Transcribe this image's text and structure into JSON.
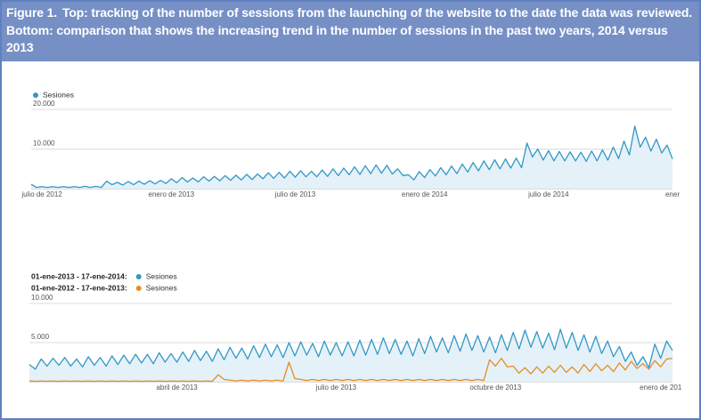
{
  "caption": {
    "label": "Figure 1.",
    "text": "Top: tracking of the number of sessions from the launching of the website to the date the data was reviewed. Bottom: comparison that shows the increasing trend in the number of sessions in the past two years, 2014 versus 2013"
  },
  "chart_data": [
    {
      "type": "line",
      "categories": [
        null,
        null,
        "julio de 2012",
        null,
        null,
        null,
        null,
        null,
        null,
        null,
        null,
        null,
        null,
        null,
        null,
        null,
        null,
        null,
        null,
        null,
        null,
        null,
        null,
        null,
        null,
        null,
        "enero de 2013",
        null,
        null,
        null,
        null,
        null,
        null,
        null,
        null,
        null,
        null,
        null,
        null,
        null,
        null,
        null,
        null,
        null,
        null,
        null,
        null,
        null,
        null,
        "julio de 2013",
        null,
        null,
        null,
        null,
        null,
        null,
        null,
        null,
        null,
        null,
        null,
        null,
        null,
        null,
        null,
        null,
        null,
        null,
        null,
        null,
        null,
        null,
        null,
        "enero de 2014",
        null,
        null,
        null,
        null,
        null,
        null,
        null,
        null,
        null,
        null,
        null,
        null,
        null,
        null,
        null,
        null,
        null,
        null,
        null,
        null,
        null,
        null,
        "julio de 2014",
        null,
        null,
        null,
        null,
        null,
        null,
        null,
        null,
        null,
        null,
        null,
        null,
        null,
        null,
        null,
        null,
        null,
        null,
        null,
        null,
        null,
        null,
        "ener"
      ],
      "series": [
        {
          "name": "Sesiones",
          "color": "#3497c6",
          "fill": "#e4f1f8",
          "values": [
            1100,
            300,
            500,
            300,
            500,
            300,
            500,
            300,
            500,
            300,
            600,
            300,
            600,
            300,
            1900,
            1000,
            1600,
            900,
            1800,
            1000,
            1900,
            1100,
            2000,
            1200,
            2100,
            1300,
            2500,
            1500,
            2800,
            1700,
            2700,
            1700,
            3000,
            1900,
            3100,
            2000,
            3300,
            2100,
            3400,
            2200,
            3600,
            2300,
            3700,
            2500,
            4000,
            2600,
            4100,
            2700,
            4400,
            2900,
            4500,
            3000,
            4400,
            3000,
            4700,
            3100,
            5000,
            3300,
            5200,
            3500,
            5500,
            3600,
            5800,
            3800,
            6000,
            3900,
            5900,
            3700,
            5000,
            3300,
            3500,
            2200,
            4300,
            2800,
            4800,
            3200,
            5300,
            3500,
            5700,
            3800,
            6200,
            4200,
            6600,
            4500,
            7000,
            4800,
            7300,
            5000,
            7500,
            5200,
            7700,
            5300,
            11500,
            8000,
            10000,
            7200,
            9600,
            7000,
            9400,
            7000,
            9300,
            7000,
            9200,
            6900,
            9500,
            7000,
            9800,
            7200,
            10500,
            7600,
            12000,
            8500,
            15800,
            10500,
            13000,
            9500,
            12500,
            9000,
            11000,
            7500
          ]
        }
      ],
      "ylim": [
        0,
        20000
      ],
      "yticks": [
        {
          "value": 20000,
          "label": "20.000"
        },
        {
          "value": 10000,
          "label": "10.000"
        }
      ],
      "grid": true
    },
    {
      "type": "line",
      "categories": [
        null,
        null,
        null,
        null,
        null,
        null,
        null,
        null,
        null,
        null,
        null,
        null,
        null,
        null,
        null,
        null,
        null,
        null,
        null,
        null,
        null,
        null,
        null,
        null,
        null,
        "abril de 2013",
        null,
        null,
        null,
        null,
        null,
        null,
        null,
        null,
        null,
        null,
        null,
        null,
        null,
        null,
        null,
        null,
        null,
        null,
        null,
        null,
        null,
        null,
        null,
        null,
        null,
        null,
        "julio de 2013",
        null,
        null,
        null,
        null,
        null,
        null,
        null,
        null,
        null,
        null,
        null,
        null,
        null,
        null,
        null,
        null,
        null,
        null,
        null,
        null,
        null,
        null,
        null,
        null,
        null,
        null,
        "octubre de 2013",
        null,
        null,
        null,
        null,
        null,
        null,
        null,
        null,
        null,
        null,
        null,
        null,
        null,
        null,
        null,
        null,
        null,
        null,
        null,
        null,
        null,
        null,
        null,
        null,
        null,
        null,
        null,
        "enero de 201",
        null,
        null
      ],
      "series": [
        {
          "period": "01-ene-2013 - 17-ene-2014:",
          "name": "Sesiones",
          "color": "#3497c6",
          "fill": "#e4f1f8",
          "values": [
            2200,
            1600,
            2900,
            2000,
            3000,
            2100,
            3100,
            2000,
            2900,
            1900,
            3200,
            2100,
            3100,
            2000,
            3300,
            2200,
            3400,
            2300,
            3500,
            2400,
            3500,
            2300,
            3700,
            2500,
            3600,
            2500,
            3800,
            2600,
            4000,
            2700,
            3900,
            2600,
            4200,
            2800,
            4400,
            3000,
            4300,
            2900,
            4600,
            3100,
            4800,
            3200,
            4700,
            3100,
            5000,
            3300,
            5100,
            3400,
            4900,
            3200,
            5200,
            3400,
            5000,
            3300,
            5100,
            3300,
            5300,
            3400,
            5400,
            3500,
            5600,
            3600,
            5400,
            3500,
            5200,
            3300,
            5500,
            3600,
            5800,
            3800,
            5600,
            3700,
            5900,
            3900,
            6100,
            4000,
            5900,
            3800,
            5700,
            3700,
            6000,
            4000,
            6300,
            4200,
            6600,
            4400,
            6400,
            4300,
            6200,
            4100,
            6700,
            4300,
            6300,
            4000,
            6000,
            3800,
            5800,
            3600,
            5200,
            3200,
            4500,
            2600,
            3800,
            2100,
            3200,
            1800,
            4800,
            3000,
            5200,
            4000
          ]
        },
        {
          "period": "01-ene-2012 - 17-ene-2013:",
          "name": "Sesiones",
          "color": "#e58d26",
          "values": [
            100,
            50,
            100,
            50,
            100,
            50,
            100,
            50,
            100,
            50,
            100,
            50,
            100,
            50,
            100,
            50,
            100,
            50,
            100,
            50,
            100,
            50,
            100,
            50,
            100,
            50,
            100,
            50,
            100,
            50,
            100,
            50,
            900,
            300,
            200,
            100,
            200,
            100,
            200,
            100,
            200,
            100,
            200,
            100,
            2500,
            400,
            300,
            150,
            300,
            150,
            300,
            150,
            300,
            150,
            300,
            150,
            300,
            150,
            300,
            150,
            300,
            150,
            300,
            150,
            300,
            150,
            300,
            150,
            300,
            150,
            300,
            150,
            300,
            150,
            300,
            150,
            300,
            150,
            2800,
            2000,
            3000,
            1900,
            2000,
            1100,
            1800,
            1000,
            1900,
            1100,
            2000,
            1200,
            2100,
            1200,
            1900,
            1100,
            2200,
            1300,
            2300,
            1400,
            2100,
            1300,
            2400,
            1500,
            2600,
            1700,
            2300,
            1600,
            2700,
            1900,
            2900,
            3000
          ]
        }
      ],
      "ylim": [
        0,
        10000
      ],
      "yticks": [
        {
          "value": 10000,
          "label": "10.000"
        },
        {
          "value": 5000,
          "label": "5.000"
        }
      ],
      "grid": true
    }
  ]
}
